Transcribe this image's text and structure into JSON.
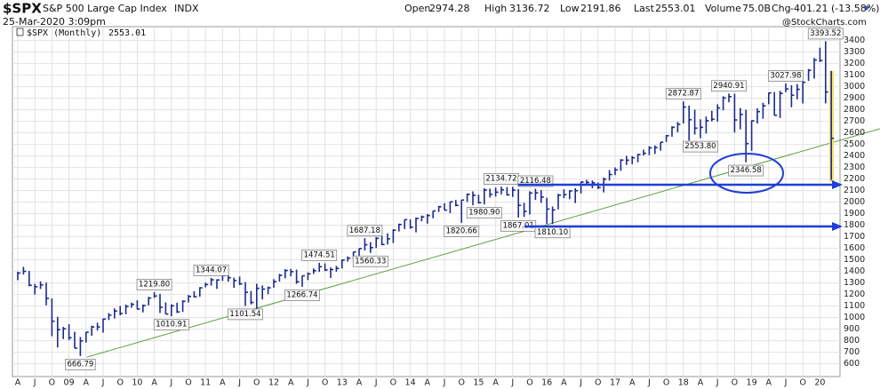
{
  "chart_data": {
    "type": "ohlc",
    "symbol": "$SPX",
    "title": "S&P 500 Large Cap Index",
    "exchange": "INDX",
    "timestamp": "25-Mar-2020 3:09pm",
    "credit": "@StockCharts.com",
    "quote": {
      "open_label": "Open",
      "open": 2974.28,
      "high_label": "High",
      "high": 3136.72,
      "low_label": "Low",
      "low": 2191.86,
      "last_label": "Last",
      "last": 2553.01,
      "volume_label": "Volume",
      "volume": "75.0B",
      "chg_label": "Chg",
      "chg": "-401.21 (-13.58%)"
    },
    "categories": [
      "A",
      null,
      null,
      "J",
      null,
      null,
      "O",
      null,
      null,
      "09",
      null,
      null,
      "A",
      null,
      null,
      "J",
      null,
      null,
      "O",
      null,
      null,
      "10",
      null,
      null,
      "A",
      null,
      null,
      "J",
      null,
      null,
      "O",
      null,
      null,
      "11",
      null,
      null,
      "A",
      null,
      null,
      "J",
      null,
      null,
      "O",
      null,
      null,
      "12",
      null,
      null,
      "A",
      null,
      null,
      "J",
      null,
      null,
      "O",
      null,
      null,
      "13",
      null,
      null,
      "A",
      null,
      null,
      "J",
      null,
      null,
      "O",
      null,
      null,
      "14",
      null,
      null,
      "A",
      null,
      null,
      "J",
      null,
      null,
      "O",
      null,
      null,
      "15",
      null,
      null,
      "A",
      null,
      null,
      "J",
      null,
      null,
      "O",
      null,
      null,
      "16",
      null,
      null,
      "A",
      null,
      null,
      "J",
      null,
      null,
      "O",
      null,
      null,
      "17",
      null,
      null,
      "A",
      null,
      null,
      "J",
      null,
      null,
      "O",
      null,
      null,
      "18",
      null,
      null,
      "A",
      null,
      null,
      "J",
      null,
      null,
      "O",
      null,
      null,
      "19",
      null,
      null,
      "A",
      null,
      null,
      "J",
      null,
      null,
      "O",
      null,
      null,
      "20",
      null,
      null
    ],
    "series": [
      {
        "name": "$SPX (Monthly)",
        "color": "#1c2a8c",
        "high": [
          1397,
          1440,
          1404,
          1292,
          1313,
          1303,
          1167,
          1007,
          919,
          943,
          877,
          832,
          875,
          930,
          956,
          993,
          1039,
          1080,
          1101,
          1113,
          1130,
          1150,
          1113,
          1180,
          1219.8,
          1206,
          1131,
          1115,
          1129,
          1150,
          1196,
          1228,
          1263,
          1303,
          1344.07,
          1332,
          1370,
          1371,
          1346,
          1356,
          1307,
          1230,
          1293,
          1278,
          1269,
          1333,
          1378,
          1419,
          1422,
          1415,
          1363,
          1391,
          1426,
          1474.51,
          1470,
          1434,
          1448,
          1503,
          1530,
          1570,
          1598,
          1687.18,
          1654,
          1698,
          1710,
          1730,
          1765,
          1814,
          1849,
          1850,
          1867,
          1884,
          1897,
          1925,
          1968,
          1991,
          2005,
          2019,
          2018,
          2075,
          2093,
          2064,
          2120,
          2117,
          2126,
          2134.72,
          2130,
          2133,
          2113,
          1994,
          2094,
          2116.48,
          2104,
          2038,
          1962,
          2073,
          2111,
          2103,
          2121,
          2178,
          2193,
          2188,
          2169,
          2214,
          2278,
          2301,
          2372,
          2401,
          2399,
          2418,
          2454,
          2484,
          2491,
          2519,
          2582,
          2657,
          2695,
          2872.87,
          2836,
          2801,
          2718,
          2742,
          2791,
          2848,
          2917,
          2940.91,
          2939,
          2815,
          2800,
          2708,
          2813,
          2861,
          2949,
          2954,
          2964,
          3027.98,
          3013,
          3022,
          3050,
          3154,
          3248,
          3338,
          3393.52,
          3136.72
        ],
        "low": [
          1324,
          1373,
          1272,
          1200,
          1248,
          1106,
          839,
          741,
          815,
          805,
          735,
          666.79,
          784,
          843,
          889,
          870,
          979,
          992,
          1020,
          1029,
          1086,
          1071,
          1045,
          1106,
          1170,
          1040,
          1028,
          1010.91,
          1040,
          1049,
          1131,
          1173,
          1181,
          1262,
          1277,
          1249,
          1318,
          1311,
          1258,
          1282,
          1101.54,
          1114,
          1075,
          1158,
          1202,
          1259,
          1312,
          1340,
          1358,
          1292,
          1266.74,
          1325,
          1378,
          1396,
          1403,
          1343,
          1398,
          1426,
          1485,
          1501,
          1536,
          1581,
          1560.33,
          1604,
          1627,
          1633,
          1646,
          1746,
          1767,
          1770,
          1738,
          1834,
          1814,
          1860,
          1915,
          1930,
          1905,
          1964,
          1820.66,
          2001,
          1973,
          1988,
          1980.9,
          2039,
          2048,
          2067,
          2056,
          2045,
          1867.01,
          1872,
          1893,
          2019,
          1993,
          1812,
          1810.1,
          1937,
          2034,
          2025,
          1992,
          2074,
          2147,
          2120,
          2114,
          2084,
          2187,
          2234,
          2271,
          2322,
          2329,
          2345,
          2404,
          2407,
          2417,
          2446,
          2521,
          2566,
          2605,
          2682,
          2533,
          2586,
          2553.8,
          2594,
          2699,
          2698,
          2796,
          2865,
          2603,
          2631,
          2346.58,
          2444,
          2681,
          2722,
          2848,
          2750,
          2729,
          2952,
          2822,
          2891,
          2855,
          3050,
          3070,
          3214,
          2855,
          2191.86
        ],
        "close": [
          1385.6,
          1400.4,
          1280,
          1267,
          1283,
          1166,
          968.8,
          896,
          903,
          825.9,
          735,
          798,
          873,
          919,
          919,
          987,
          1021,
          1057,
          1036,
          1096,
          1115,
          1074,
          1104,
          1169,
          1187,
          1089,
          1031,
          1102,
          1049,
          1141,
          1183,
          1181,
          1258,
          1286,
          1327,
          1326,
          1364,
          1345,
          1321,
          1292,
          1219,
          1131,
          1253,
          1247,
          1258,
          1312,
          1366,
          1408,
          1398,
          1310,
          1362,
          1379,
          1406,
          1441,
          1412,
          1416,
          1426,
          1498,
          1515,
          1569,
          1598,
          1631,
          1606,
          1686,
          1633,
          1682,
          1757,
          1806,
          1848,
          1783,
          1859,
          1872,
          1884,
          1924,
          1960,
          1931,
          2003,
          1972,
          2018,
          2068,
          2059,
          1995,
          2105,
          2068,
          2086,
          2107,
          2063,
          2104,
          1972,
          1920,
          2079,
          2080,
          2044,
          1940,
          1932,
          2060,
          2065,
          2097,
          2099,
          2174,
          2171,
          2168,
          2126,
          2199,
          2239,
          2279,
          2364,
          2363,
          2384,
          2412,
          2423,
          2470,
          2472,
          2519,
          2575,
          2648,
          2674,
          2824,
          2714,
          2641,
          2648,
          2705,
          2718,
          2816,
          2902,
          2914,
          2712,
          2760,
          2507,
          2704,
          2784,
          2834,
          2946,
          2752,
          2942,
          2980,
          2926,
          2977,
          3038,
          3141,
          3231,
          3226,
          2954,
          2553.01
        ]
      }
    ],
    "annotations": [
      3393.52,
      666.79,
      {
        "value": 1219.8,
        "label": "1219.80"
      },
      1010.91,
      1344.07,
      1101.54,
      1266.74,
      1474.51,
      1687.18,
      1560.33,
      2134.72,
      {
        "value": 1980.9,
        "label": "1980.90"
      },
      1820.66,
      2116.48,
      1867.01,
      {
        "value": 1810.1,
        "label": "1810.10"
      },
      2872.87,
      {
        "value": 2553.8,
        "label": "2553.80"
      },
      2940.91,
      2346.58,
      3027.98
    ],
    "ylim": [
      520,
      3520
    ],
    "yticks": [
      600,
      700,
      800,
      900,
      1000,
      1100,
      1200,
      1300,
      1400,
      1500,
      1600,
      1700,
      1800,
      1900,
      2000,
      2100,
      2200,
      2300,
      2400,
      2500,
      2600,
      2700,
      2800,
      2900,
      3000,
      3100,
      3200,
      3300,
      3400
    ],
    "grid": true,
    "scale": "linear"
  }
}
